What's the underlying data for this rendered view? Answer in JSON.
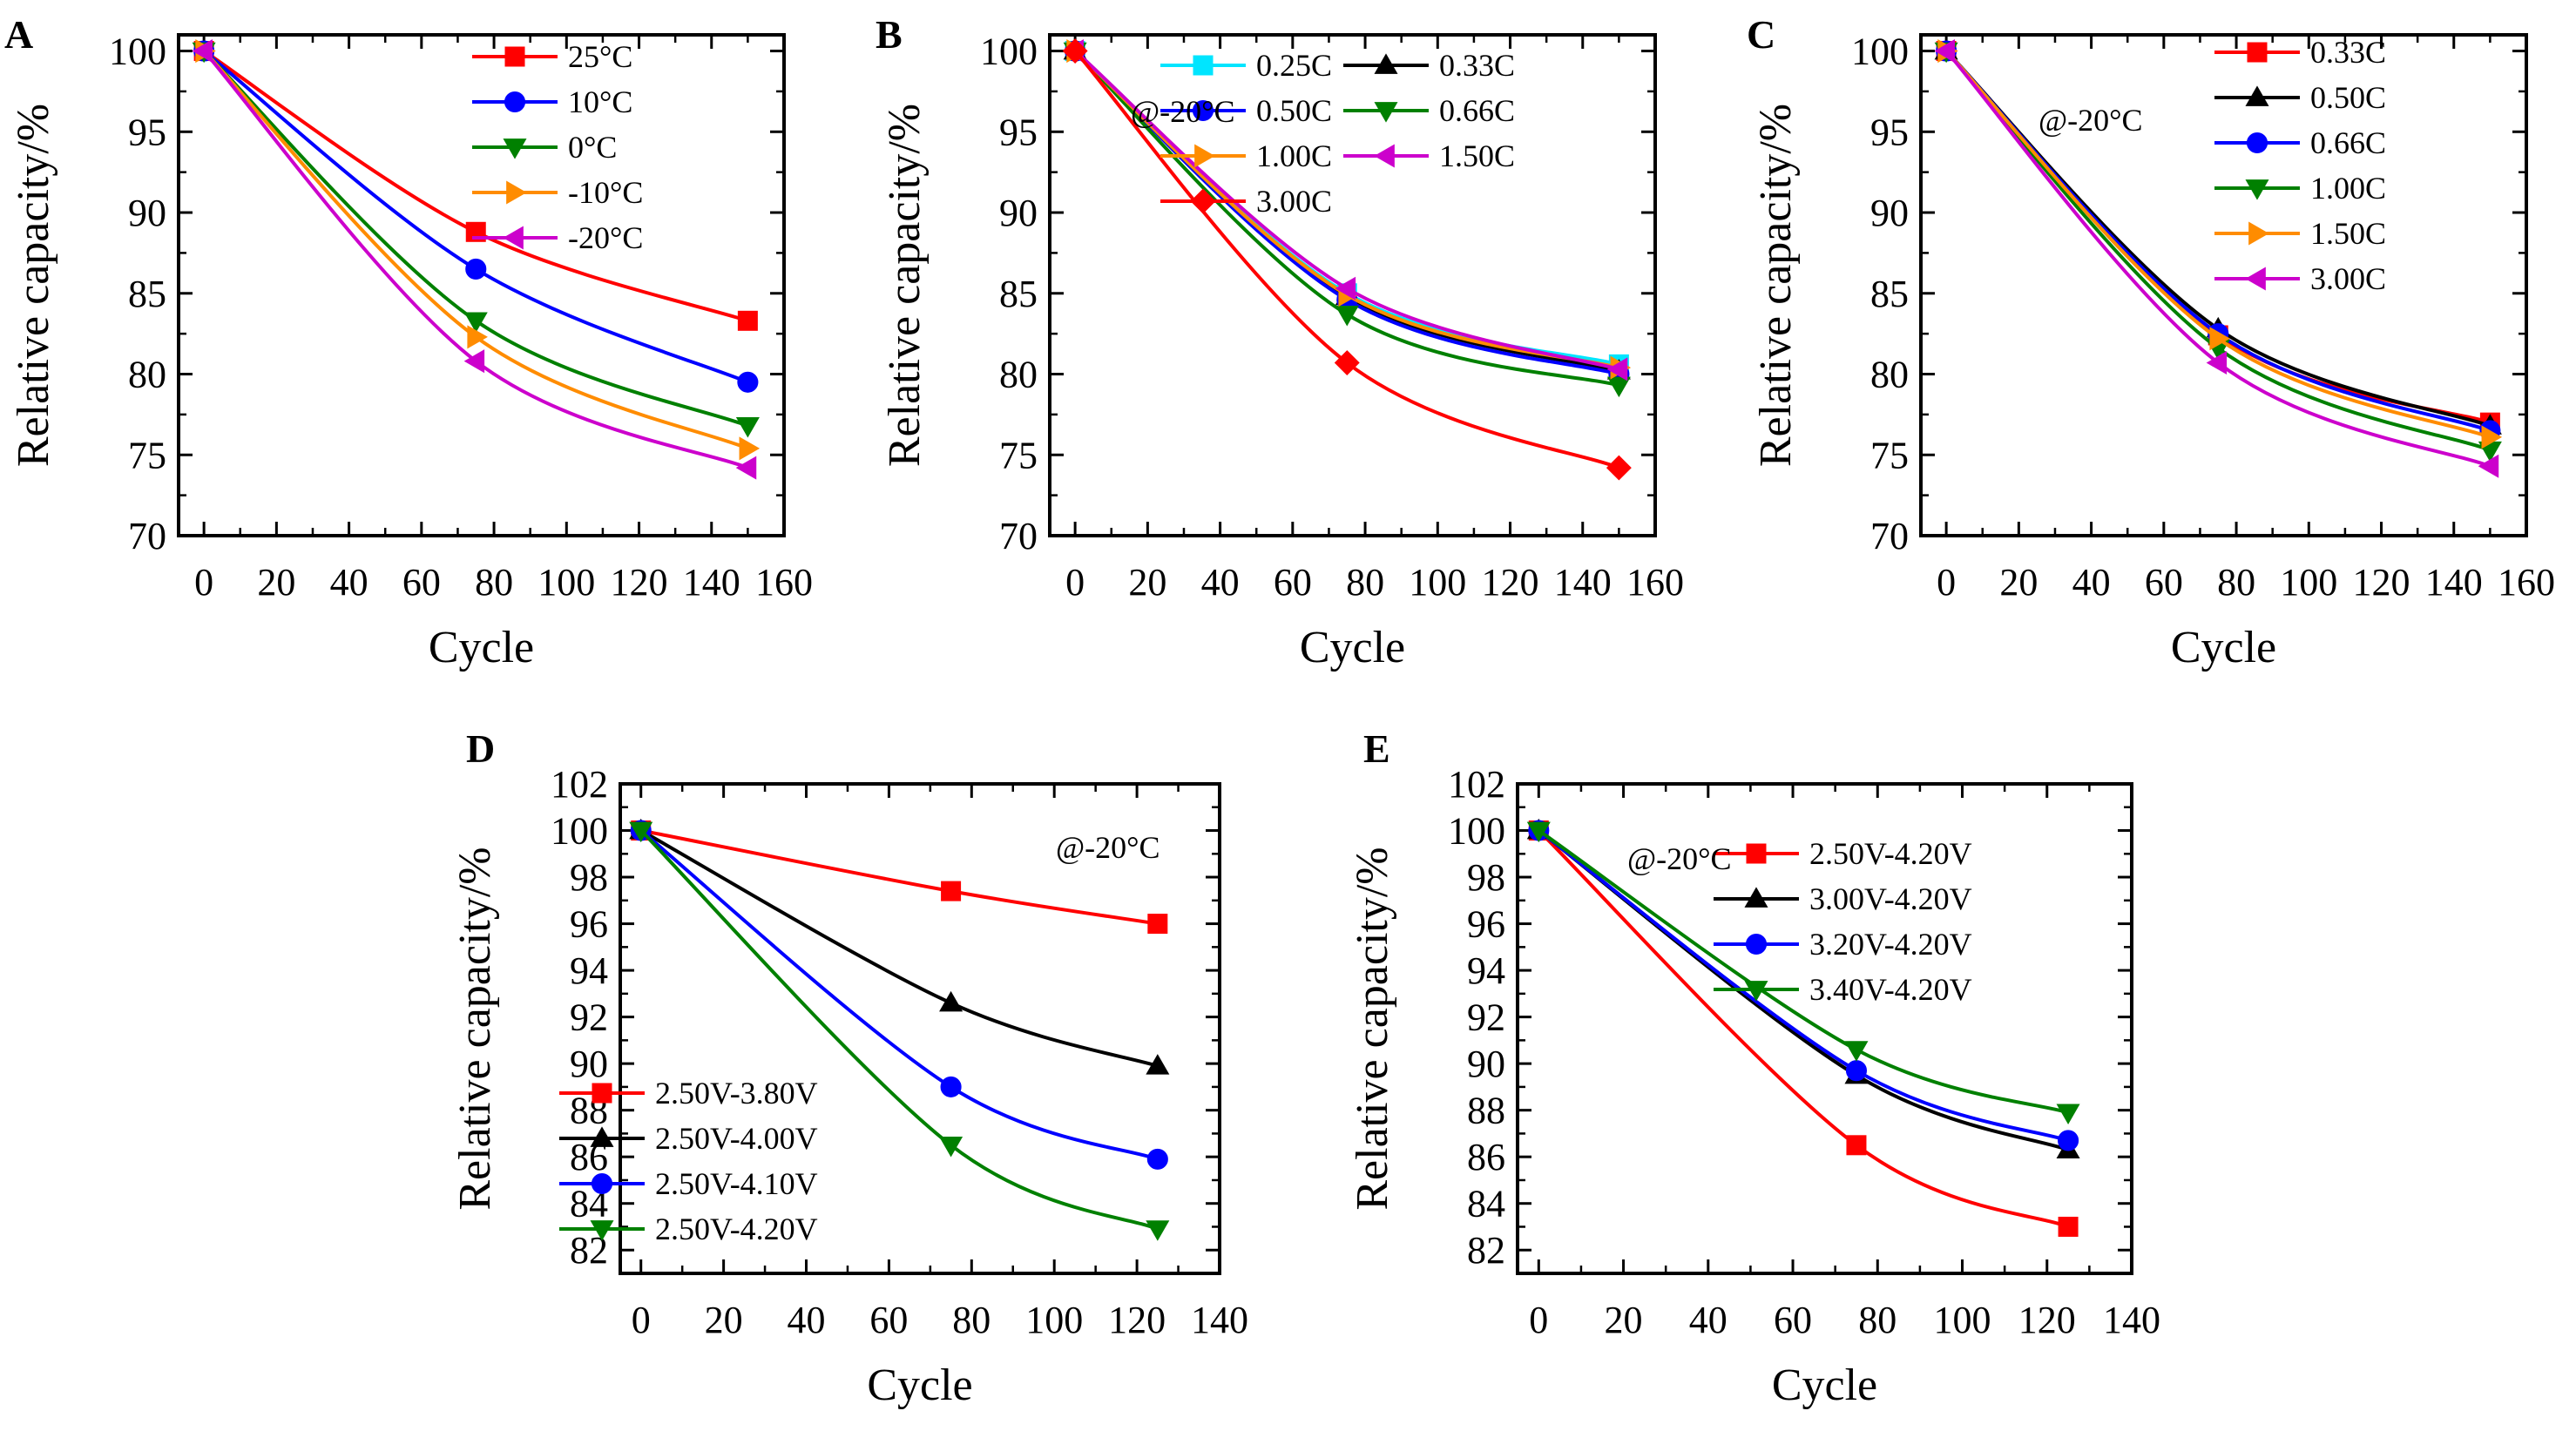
{
  "chart_data": [
    {
      "panel": "A",
      "type": "line",
      "xlabel": "Cycle",
      "ylabel": "Relative capacity/%",
      "xlim": [
        -7,
        160
      ],
      "ylim": [
        70,
        101
      ],
      "xticks": [
        0,
        20,
        40,
        60,
        80,
        100,
        120,
        140,
        160
      ],
      "yticks": [
        70,
        75,
        80,
        85,
        90,
        95,
        100
      ],
      "annotation": "",
      "series": [
        {
          "name": "25°C",
          "color": "#ff0000",
          "marker": "square",
          "x": [
            0,
            75,
            150
          ],
          "y": [
            100,
            88.8,
            83.3
          ]
        },
        {
          "name": "10°C",
          "color": "#0000ff",
          "marker": "circle",
          "x": [
            0,
            75,
            150
          ],
          "y": [
            100,
            86.5,
            79.5
          ]
        },
        {
          "name": "0°C",
          "color": "#008000",
          "marker": "triangle-down",
          "x": [
            0,
            75,
            150
          ],
          "y": [
            100,
            83.3,
            76.8
          ]
        },
        {
          "name": "-10°C",
          "color": "#ff8c00",
          "marker": "triangle-right",
          "x": [
            0,
            75,
            150
          ],
          "y": [
            100,
            82.3,
            75.4
          ]
        },
        {
          "name": "-20°C",
          "color": "#cc00cc",
          "marker": "triangle-left",
          "x": [
            0,
            75,
            150
          ],
          "y": [
            100,
            80.8,
            74.2
          ]
        }
      ]
    },
    {
      "panel": "B",
      "type": "line",
      "xlabel": "Cycle",
      "ylabel": "Relative capacity/%",
      "xlim": [
        -7,
        160
      ],
      "ylim": [
        70,
        101
      ],
      "xticks": [
        0,
        20,
        40,
        60,
        80,
        100,
        120,
        140,
        160
      ],
      "yticks": [
        70,
        75,
        80,
        85,
        90,
        95,
        100
      ],
      "annotation": "@-20°C",
      "series": [
        {
          "name": "0.25C",
          "color": "#00e5ff",
          "marker": "square",
          "x": [
            0,
            75,
            150
          ],
          "y": [
            100,
            85.0,
            80.6
          ]
        },
        {
          "name": "0.33C",
          "color": "#000000",
          "marker": "triangle-up",
          "x": [
            0,
            75,
            150
          ],
          "y": [
            100,
            84.8,
            80.2
          ]
        },
        {
          "name": "0.50C",
          "color": "#0000ff",
          "marker": "circle",
          "x": [
            0,
            75,
            150
          ],
          "y": [
            100,
            84.6,
            80.0
          ]
        },
        {
          "name": "0.66C",
          "color": "#008000",
          "marker": "triangle-down",
          "x": [
            0,
            75,
            150
          ],
          "y": [
            100,
            83.7,
            79.3
          ]
        },
        {
          "name": "1.00C",
          "color": "#ff8c00",
          "marker": "triangle-right",
          "x": [
            0,
            75,
            150
          ],
          "y": [
            100,
            84.9,
            80.4
          ]
        },
        {
          "name": "1.50C",
          "color": "#cc00cc",
          "marker": "triangle-left",
          "x": [
            0,
            75,
            150
          ],
          "y": [
            100,
            85.3,
            80.3
          ]
        },
        {
          "name": "3.00C",
          "color": "#ff0000",
          "marker": "diamond",
          "x": [
            0,
            75,
            150
          ],
          "y": [
            100,
            80.7,
            74.2
          ]
        }
      ]
    },
    {
      "panel": "C",
      "type": "line",
      "xlabel": "Cycle",
      "ylabel": "Relative capacity/%",
      "xlim": [
        -7,
        160
      ],
      "ylim": [
        70,
        101
      ],
      "xticks": [
        0,
        20,
        40,
        60,
        80,
        100,
        120,
        140,
        160
      ],
      "yticks": [
        70,
        75,
        80,
        85,
        90,
        95,
        100
      ],
      "annotation": "@-20°C",
      "series": [
        {
          "name": "0.33C",
          "color": "#ff0000",
          "marker": "square",
          "x": [
            0,
            75,
            150
          ],
          "y": [
            100,
            82.4,
            77.0
          ]
        },
        {
          "name": "0.50C",
          "color": "#000000",
          "marker": "triangle-up",
          "x": [
            0,
            75,
            150
          ],
          "y": [
            100,
            82.8,
            76.8
          ]
        },
        {
          "name": "0.66C",
          "color": "#0000ff",
          "marker": "circle",
          "x": [
            0,
            75,
            150
          ],
          "y": [
            100,
            82.5,
            76.5
          ]
        },
        {
          "name": "1.00C",
          "color": "#008000",
          "marker": "triangle-down",
          "x": [
            0,
            75,
            150
          ],
          "y": [
            100,
            81.6,
            75.3
          ]
        },
        {
          "name": "1.50C",
          "color": "#ff8c00",
          "marker": "triangle-right",
          "x": [
            0,
            75,
            150
          ],
          "y": [
            100,
            82.2,
            76.1
          ]
        },
        {
          "name": "3.00C",
          "color": "#cc00cc",
          "marker": "triangle-left",
          "x": [
            0,
            75,
            150
          ],
          "y": [
            100,
            80.7,
            74.3
          ]
        }
      ]
    },
    {
      "panel": "D",
      "type": "line",
      "xlabel": "Cycle",
      "ylabel": "Relative capacity/%",
      "xlim": [
        -5,
        140
      ],
      "ylim": [
        81,
        102
      ],
      "xticks": [
        0,
        20,
        40,
        60,
        80,
        100,
        120,
        140
      ],
      "yticks": [
        82,
        84,
        86,
        88,
        90,
        92,
        94,
        96,
        98,
        100,
        102
      ],
      "annotation": "@-20°C",
      "series": [
        {
          "name": "2.50V-3.80V",
          "color": "#ff0000",
          "marker": "square",
          "x": [
            0,
            75,
            125
          ],
          "y": [
            100,
            97.4,
            96.0
          ]
        },
        {
          "name": "2.50V-4.00V",
          "color": "#000000",
          "marker": "triangle-up",
          "x": [
            0,
            75,
            125
          ],
          "y": [
            100,
            92.6,
            89.9
          ]
        },
        {
          "name": "2.50V-4.10V",
          "color": "#0000ff",
          "marker": "circle",
          "x": [
            0,
            75,
            125
          ],
          "y": [
            100,
            89.0,
            85.9
          ]
        },
        {
          "name": "2.50V-4.20V",
          "color": "#008000",
          "marker": "triangle-down",
          "x": [
            0,
            75,
            125
          ],
          "y": [
            100,
            86.5,
            82.9
          ]
        }
      ]
    },
    {
      "panel": "E",
      "type": "line",
      "xlabel": "Cycle",
      "ylabel": "Relative capacity/%",
      "xlim": [
        -5,
        140
      ],
      "ylim": [
        81,
        102
      ],
      "xticks": [
        0,
        20,
        40,
        60,
        80,
        100,
        120,
        140
      ],
      "yticks": [
        82,
        84,
        86,
        88,
        90,
        92,
        94,
        96,
        98,
        100,
        102
      ],
      "annotation": "@-20°C",
      "series": [
        {
          "name": "2.50V-4.20V",
          "color": "#ff0000",
          "marker": "square",
          "x": [
            0,
            75,
            125
          ],
          "y": [
            100,
            86.5,
            83.0
          ]
        },
        {
          "name": "3.00V-4.20V",
          "color": "#000000",
          "marker": "triangle-up",
          "x": [
            0,
            75,
            125
          ],
          "y": [
            100,
            89.5,
            86.3
          ]
        },
        {
          "name": "3.20V-4.20V",
          "color": "#0000ff",
          "marker": "circle",
          "x": [
            0,
            75,
            125
          ],
          "y": [
            100,
            89.7,
            86.7
          ]
        },
        {
          "name": "3.40V-4.20V",
          "color": "#008000",
          "marker": "triangle-down",
          "x": [
            0,
            75,
            125
          ],
          "y": [
            100,
            90.6,
            87.9
          ]
        }
      ]
    }
  ]
}
